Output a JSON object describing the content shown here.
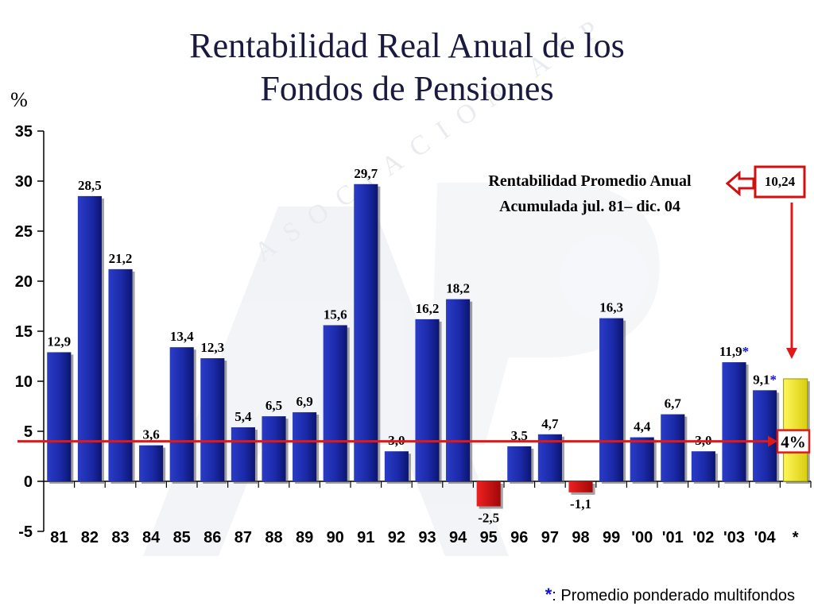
{
  "chart_data": {
    "type": "bar",
    "title": [
      "Rentabilidad Real Anual de los",
      "Fondos de Pensiones"
    ],
    "ylabel": "%",
    "ylim": [
      -5,
      35
    ],
    "yticks": [
      -5,
      0,
      5,
      10,
      15,
      20,
      25,
      30,
      35
    ],
    "categories": [
      "81",
      "82",
      "83",
      "84",
      "85",
      "86",
      "87",
      "88",
      "89",
      "90",
      "91",
      "92",
      "93",
      "94",
      "95",
      "96",
      "97",
      "98",
      "99",
      "'00",
      "'01",
      "'02",
      "'03",
      "'04",
      "*"
    ],
    "values": [
      12.9,
      28.5,
      21.2,
      3.6,
      13.4,
      12.3,
      5.4,
      6.5,
      6.9,
      15.6,
      29.7,
      3.0,
      16.2,
      18.2,
      -2.5,
      3.5,
      4.7,
      -1.1,
      16.3,
      4.4,
      6.7,
      3.0,
      11.9,
      9.1,
      10.24
    ],
    "value_labels": [
      "12,9",
      "28,5",
      "21,2",
      "3,6",
      "13,4",
      "12,3",
      "5,4",
      "6,5",
      "6,9",
      "15,6",
      "29,7",
      "3,0",
      "16,2",
      "18,2",
      "-2,5",
      "3,5",
      "4,7",
      "-1,1",
      "16,3",
      "4,4",
      "6,7",
      "3,0",
      "11,9",
      "9,1",
      ""
    ],
    "starred_labels": [
      22,
      23
    ],
    "colors": {
      "positive": "#1b2aa8",
      "negative": "#d01010",
      "average": "#f0ea20",
      "reference": "#e01818"
    },
    "reference_line": {
      "value": 4,
      "label": "4%"
    },
    "average": {
      "label_lines": [
        "Rentabilidad Promedio Anual",
        "Acumulada jul. 81– dic. 04"
      ],
      "value_label": "10,24"
    },
    "watermark": "ASOCIACION AFP",
    "footnote": {
      "symbol": "*",
      "text": ": Promedio ponderado multifondos"
    }
  }
}
